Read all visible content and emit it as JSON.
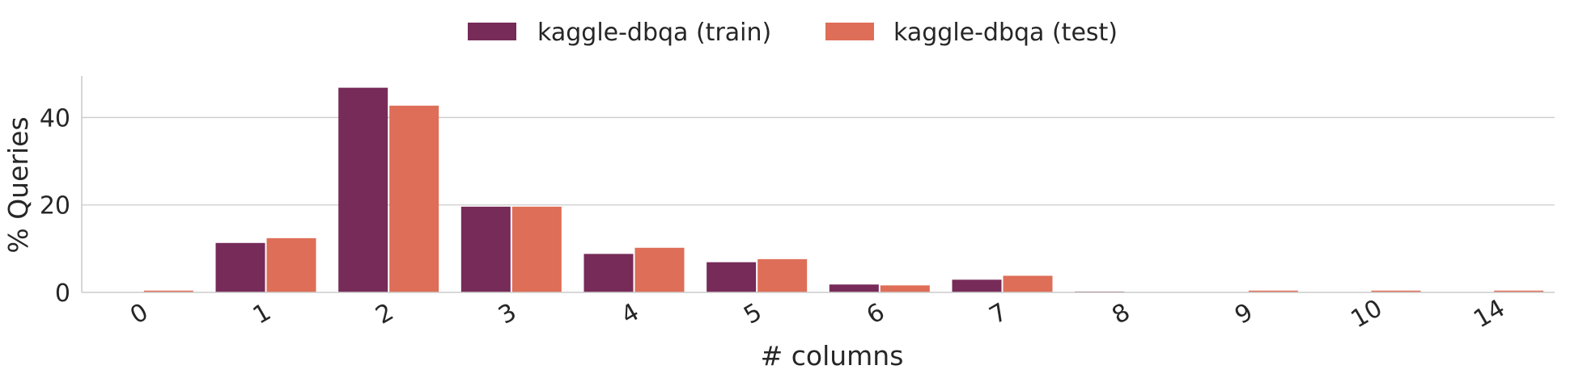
{
  "chart_data": {
    "type": "bar",
    "title": "",
    "xlabel": "# columns",
    "ylabel": "% Queries",
    "categories": [
      "0",
      "1",
      "2",
      "3",
      "4",
      "5",
      "6",
      "7",
      "8",
      "9",
      "10",
      "14"
    ],
    "series": [
      {
        "name": "kaggle-dbqa (train)",
        "color": "#772B58",
        "values": [
          0,
          11.3,
          46.8,
          19.6,
          8.8,
          6.9,
          1.8,
          2.9,
          0.2,
          0,
          0,
          0
        ]
      },
      {
        "name": "kaggle-dbqa (test)",
        "color": "#DE6E57",
        "values": [
          0.4,
          12.4,
          42.7,
          19.6,
          10.2,
          7.6,
          1.6,
          3.8,
          0,
          0.4,
          0.4,
          0.4
        ]
      }
    ],
    "ylim": [
      0,
      49.5
    ],
    "yticks": [
      0,
      20,
      40
    ],
    "grid": "horizontal",
    "legend": "top-center"
  }
}
